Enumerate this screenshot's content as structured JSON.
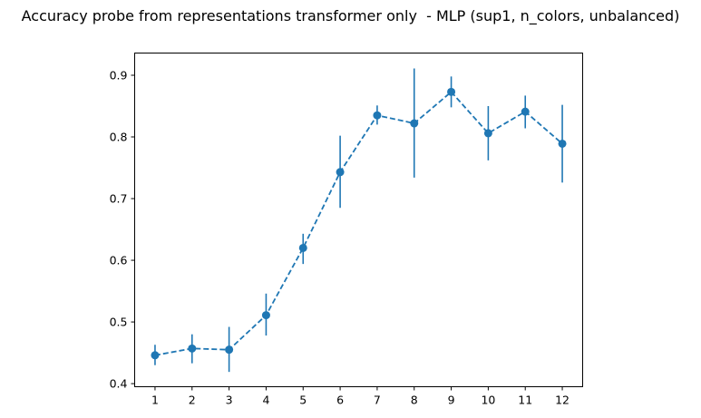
{
  "chart_data": {
    "type": "line",
    "title": "Accuracy probe from representations transformer only  - MLP (sup1, n_colors, unbalanced)",
    "xlabel": "",
    "ylabel": "",
    "x": [
      1,
      2,
      3,
      4,
      5,
      6,
      7,
      8,
      9,
      10,
      11,
      12
    ],
    "series": [
      {
        "values": [
          0.446,
          0.457,
          0.455,
          0.511,
          0.62,
          0.743,
          0.835,
          0.822,
          0.873,
          0.806,
          0.841,
          0.789
        ],
        "err_low": [
          0.43,
          0.433,
          0.419,
          0.478,
          0.594,
          0.685,
          0.82,
          0.734,
          0.848,
          0.762,
          0.814,
          0.726
        ],
        "err_high": [
          0.463,
          0.48,
          0.492,
          0.546,
          0.643,
          0.802,
          0.851,
          0.911,
          0.898,
          0.85,
          0.867,
          0.852
        ],
        "color": "#1f77b4",
        "line_style": "dashed",
        "marker": "circle"
      }
    ],
    "xticks": [
      "1",
      "2",
      "3",
      "4",
      "5",
      "6",
      "7",
      "8",
      "9",
      "10",
      "11",
      "12"
    ],
    "yticks": [
      "0.4",
      "0.5",
      "0.6",
      "0.7",
      "0.8",
      "0.9"
    ],
    "ytick_values": [
      0.4,
      0.5,
      0.6,
      0.7,
      0.8,
      0.9
    ],
    "xlim": [
      0.45,
      12.55
    ],
    "ylim": [
      0.395,
      0.936
    ],
    "grid": false,
    "legend": "none"
  }
}
